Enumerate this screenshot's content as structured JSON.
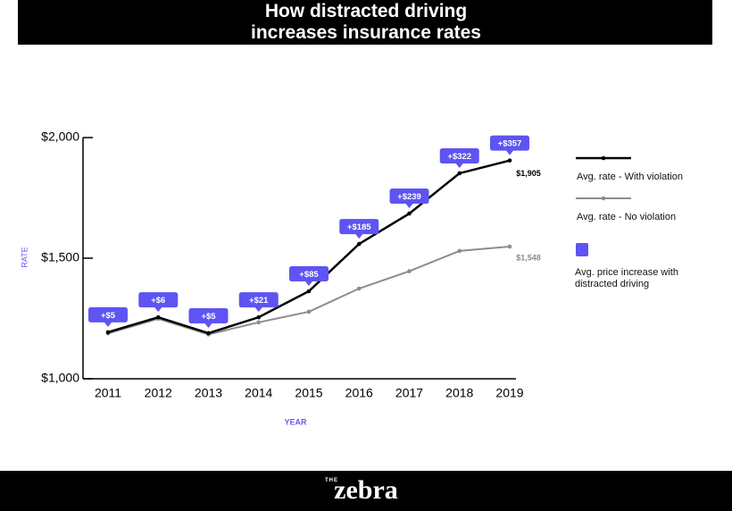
{
  "chart_data": {
    "type": "line",
    "title": "How distracted driving increases insurance rates",
    "categories": [
      "2011",
      "2012",
      "2013",
      "2014",
      "2015",
      "2016",
      "2017",
      "2018",
      "2019"
    ],
    "series": [
      {
        "name": "Avg. rate - With violation",
        "color": "#000000",
        "values": [
          1193,
          1255,
          1189,
          1255,
          1363,
          1559,
          1685,
          1852,
          1905
        ],
        "value_labels": [
          null,
          null,
          null,
          null,
          null,
          null,
          null,
          null,
          "$1,905"
        ]
      },
      {
        "name": "Avg. rate - No violation",
        "color": "#8c8c8c",
        "values": [
          1188,
          1249,
          1184,
          1234,
          1278,
          1374,
          1446,
          1530,
          1548
        ],
        "value_labels": [
          null,
          null,
          null,
          null,
          null,
          null,
          null,
          null,
          "$1,548"
        ]
      }
    ],
    "increase": {
      "name": "Avg. price increase with distracted driving",
      "color": "#5d54f2",
      "values": [
        5,
        6,
        5,
        21,
        85,
        185,
        239,
        322,
        357
      ],
      "value_labels": [
        "+$5",
        "+$6",
        "+$5",
        "+$21",
        "+$85",
        "+$185",
        "+$239",
        "+$322",
        "+$357"
      ]
    },
    "ylim": [
      1000,
      2000
    ],
    "yticks": [
      {
        "value": 1000,
        "label": "$1,000"
      },
      {
        "value": 1500,
        "label": "$1,500"
      },
      {
        "value": 2000,
        "label": "$2,000"
      }
    ],
    "ylabel": "RATE",
    "xlabel": "YEAR",
    "axis_label_color": "#6b5cf0",
    "legend": "right",
    "brand_prefix": "THE",
    "brand": "zebra"
  }
}
